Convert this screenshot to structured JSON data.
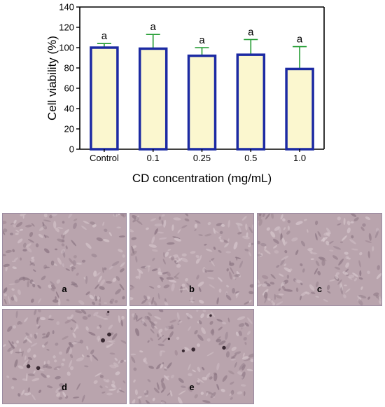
{
  "chart_data": {
    "type": "bar",
    "categories": [
      "Control",
      "0.1",
      "0.25",
      "0.5",
      "1.0"
    ],
    "values": [
      100,
      99,
      92,
      93,
      79
    ],
    "error_plus": [
      4,
      14,
      8,
      15,
      22
    ],
    "significance_labels": [
      "a",
      "a",
      "a",
      "a",
      "a"
    ],
    "xlabel": "CD concentration (mg/mL)",
    "ylabel": "Cell viability (%)",
    "ylim": [
      0,
      140
    ],
    "yticks": [
      "0",
      "20",
      "40",
      "60",
      "80",
      "100",
      "120",
      "140"
    ],
    "bar_fill": "#fbf7cf",
    "bar_stroke": "#1c2aa3",
    "error_color": "#1f9a2e",
    "grid": false
  },
  "panels": [
    {
      "label": "a"
    },
    {
      "label": "b"
    },
    {
      "label": "c"
    },
    {
      "label": "d"
    },
    {
      "label": "e"
    }
  ],
  "colors": {
    "micrograph_base": "#b9a4ad",
    "micrograph_dark": "#8c7683",
    "micrograph_light": "#d6c6cc"
  }
}
